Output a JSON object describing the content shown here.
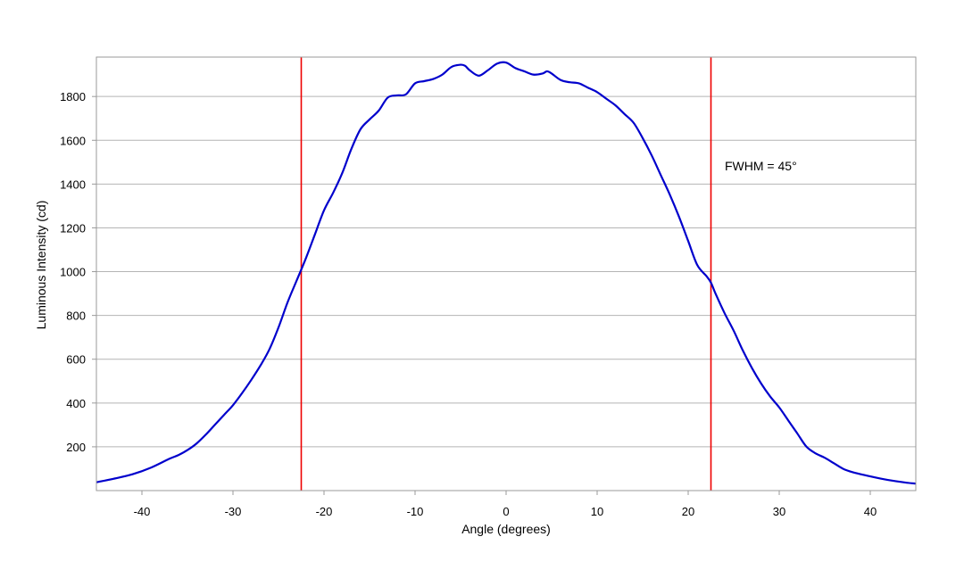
{
  "chart_data": {
    "type": "line",
    "title": "",
    "xlabel": "Angle (degrees)",
    "ylabel": "Luminous Intensity (cd)",
    "xlim": [
      -45,
      45
    ],
    "ylim": [
      0,
      1980
    ],
    "x_ticks": [
      -40,
      -30,
      -20,
      -10,
      0,
      10,
      20,
      30,
      40
    ],
    "y_ticks": [
      200,
      400,
      600,
      800,
      1000,
      1200,
      1400,
      1600,
      1800
    ],
    "grid": "horizontal",
    "legend": "none",
    "annotation": "FWHM = 45°",
    "colors": {
      "series": "#0000cc",
      "markers": "#ee0000",
      "grid": "#b4b4b4",
      "frame": "#999999"
    },
    "series": [
      {
        "x": [
          -45,
          -43,
          -41,
          -39,
          -37,
          -36,
          -35,
          -34,
          -33,
          -32,
          -31,
          -30,
          -29,
          -28,
          -27,
          -26,
          -25,
          -24,
          -23,
          -22,
          -21,
          -20,
          -19,
          -18,
          -17,
          -16,
          -15,
          -14,
          -13,
          -12,
          -11,
          -10,
          -9,
          -8,
          -7,
          -6,
          -5,
          -4.5,
          -4,
          -3,
          -2,
          -1,
          0,
          1,
          2,
          3,
          4,
          4.5,
          5,
          6,
          7,
          8,
          9,
          10,
          11,
          12,
          13,
          14,
          15,
          16,
          17,
          18,
          19,
          20,
          21,
          22,
          22.5,
          23,
          24,
          25,
          26,
          27,
          28,
          29,
          30,
          31,
          32,
          33,
          34,
          35,
          36,
          37,
          38,
          40,
          42,
          44,
          45
        ],
        "y": [
          38,
          55,
          75,
          105,
          145,
          162,
          185,
          215,
          255,
          300,
          345,
          390,
          445,
          505,
          570,
          645,
          745,
          860,
          960,
          1060,
          1170,
          1280,
          1360,
          1450,
          1560,
          1650,
          1695,
          1735,
          1795,
          1805,
          1810,
          1860,
          1870,
          1880,
          1900,
          1935,
          1945,
          1940,
          1920,
          1895,
          1920,
          1950,
          1955,
          1930,
          1915,
          1900,
          1905,
          1915,
          1905,
          1875,
          1865,
          1860,
          1840,
          1820,
          1790,
          1760,
          1720,
          1680,
          1610,
          1530,
          1440,
          1350,
          1250,
          1140,
          1030,
          980,
          950,
          900,
          810,
          730,
          640,
          560,
          490,
          430,
          380,
          320,
          260,
          200,
          170,
          150,
          125,
          100,
          85,
          65,
          48,
          36,
          32
        ]
      }
    ],
    "vlines": [
      -22.5,
      22.5
    ]
  }
}
